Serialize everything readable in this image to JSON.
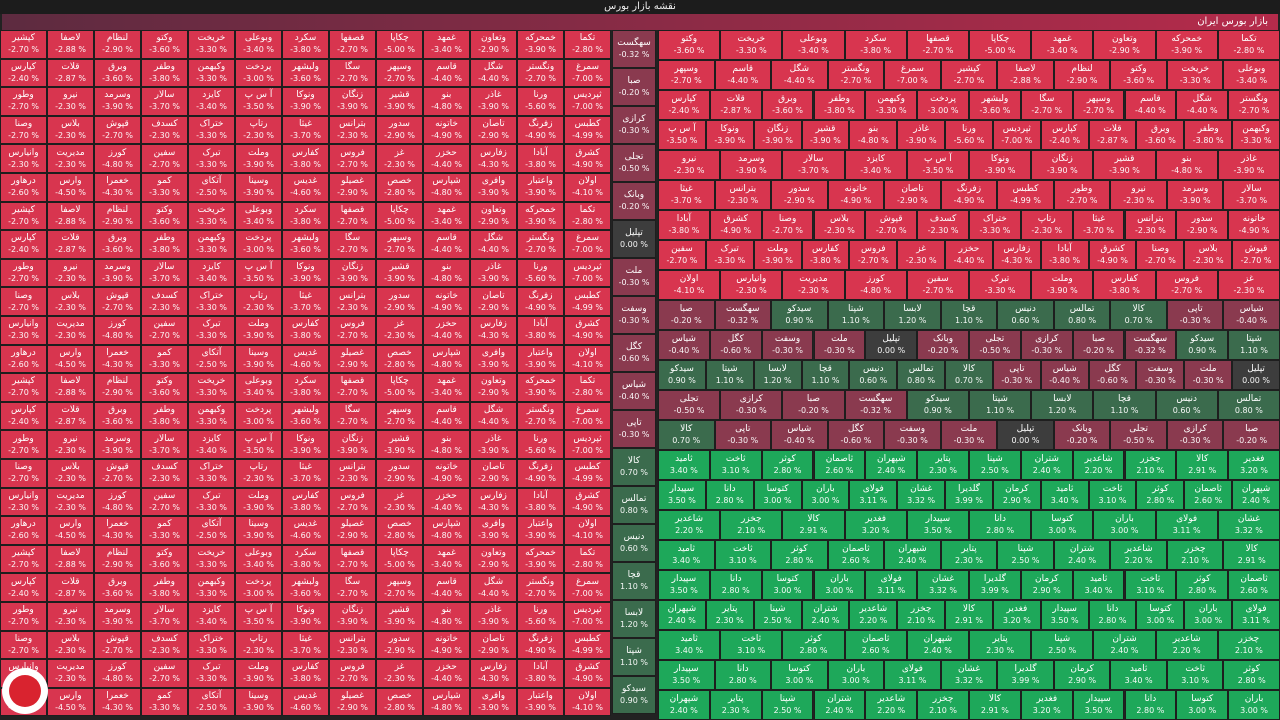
{
  "header": {
    "title": "نقشه بازار بورس",
    "subtitle": "بازار بورس ایران"
  },
  "colors": {
    "neg_strong": "#d8354f",
    "neg_mid": "#8a3a4f",
    "neutral": "#3d3d3d",
    "pos_mid": "#3b6b4d",
    "pos_strong": "#1ea85a"
  },
  "chart_data": {
    "type": "heatmap",
    "title": "نقشه بازار بورس",
    "subtitle": "بازار بورس ایران",
    "small_tiles": [
      {
        "name": "تکما",
        "change": -2.8
      },
      {
        "name": "خمحرکه",
        "change": -3.9
      },
      {
        "name": "وتعاون",
        "change": -2.9
      },
      {
        "name": "غمهد",
        "change": -3.4
      },
      {
        "name": "چکاپا",
        "change": -5
      },
      {
        "name": "قصفها",
        "change": -2.7
      },
      {
        "name": "سکرد",
        "change": -3.8
      },
      {
        "name": "وبوعلی",
        "change": -3.4
      },
      {
        "name": "خریخت",
        "change": -3.3
      },
      {
        "name": "وکتو",
        "change": -3.6
      },
      {
        "name": "لنظام",
        "change": -2.9
      },
      {
        "name": "لاصفا",
        "change": -2.88
      },
      {
        "name": "کپشیر",
        "change": -2.7
      },
      {
        "name": "سمرغ",
        "change": -7
      },
      {
        "name": "ونگستر",
        "change": -2.7
      },
      {
        "name": "شگل",
        "change": -4.4
      },
      {
        "name": "قاسم",
        "change": -4.4
      },
      {
        "name": "وسپهر",
        "change": -2.7
      },
      {
        "name": "سگا",
        "change": -2.7
      },
      {
        "name": "ولبشهر",
        "change": -3.6
      },
      {
        "name": "پردخت",
        "change": -3
      },
      {
        "name": "وکبهمن",
        "change": -3.3
      },
      {
        "name": "وطفر",
        "change": -3.8
      },
      {
        "name": "وبرق",
        "change": -3.6
      },
      {
        "name": "قلات",
        "change": -2.87
      },
      {
        "name": "کپارس",
        "change": -2.4
      },
      {
        "name": "ثپردیس",
        "change": -7
      },
      {
        "name": "ورنا",
        "change": -5.6
      },
      {
        "name": "غاذر",
        "change": -3.9
      },
      {
        "name": "بنو",
        "change": -4.8
      },
      {
        "name": "قشیر",
        "change": -3.9
      },
      {
        "name": "زنگان",
        "change": -3.9
      },
      {
        "name": "ونوکا",
        "change": -3.9
      },
      {
        "name": "آ س پ",
        "change": -3.5
      },
      {
        "name": "کایزد",
        "change": -3.4
      },
      {
        "name": "سالار",
        "change": -3.7
      },
      {
        "name": "وسرمد",
        "change": -3.9
      },
      {
        "name": "نیرو",
        "change": -2.3
      },
      {
        "name": "وطور",
        "change": -2.7
      },
      {
        "name": "کطبس",
        "change": -4.99
      },
      {
        "name": "زفرنگ",
        "change": -4.9
      },
      {
        "name": "تاصان",
        "change": -2.9
      },
      {
        "name": "خاتونه",
        "change": -4.9
      },
      {
        "name": "سدور",
        "change": -2.9
      },
      {
        "name": "بترانس",
        "change": -2.3
      },
      {
        "name": "غیثا",
        "change": -3.7
      },
      {
        "name": "رتاپ",
        "change": -2.3
      },
      {
        "name": "ختراک",
        "change": -3.3
      },
      {
        "name": "کسدف",
        "change": -2.3
      },
      {
        "name": "قپوش",
        "change": -2.7
      },
      {
        "name": "بلاس",
        "change": -2.3
      },
      {
        "name": "وصنا",
        "change": -2.7
      },
      {
        "name": "کشرق",
        "change": -4.9
      },
      {
        "name": "آبادا",
        "change": -3.8
      },
      {
        "name": "زفارس",
        "change": -4.3
      },
      {
        "name": "حخزر",
        "change": -4.4
      },
      {
        "name": "غز",
        "change": -2.3
      },
      {
        "name": "فروس",
        "change": -2.7
      },
      {
        "name": "کفارس",
        "change": -3.8
      },
      {
        "name": "وملت",
        "change": -3.9
      },
      {
        "name": "تبرک",
        "change": -3.3
      },
      {
        "name": "سفین",
        "change": -2.7
      },
      {
        "name": "کورز",
        "change": -4.8
      },
      {
        "name": "مدیریت",
        "change": -2.3
      },
      {
        "name": "وانیارس",
        "change": -2.3
      },
      {
        "name": "اولان",
        "change": -4.1
      },
      {
        "name": "واعتبار",
        "change": -3.9
      },
      {
        "name": "وافری",
        "change": -3.9
      },
      {
        "name": "شپارس",
        "change": -4.8
      },
      {
        "name": "خصص",
        "change": -2.8
      },
      {
        "name": "غصیلو",
        "change": -2.9
      },
      {
        "name": "غدیس",
        "change": -4.6
      },
      {
        "name": "وسینا",
        "change": -3.9
      },
      {
        "name": "آتکای",
        "change": -2.5
      },
      {
        "name": "کمو",
        "change": -3.3
      },
      {
        "name": "خعمرا",
        "change": -4.3
      },
      {
        "name": "وارس",
        "change": -4.5
      },
      {
        "name": "درهاور",
        "change": -2.6
      }
    ],
    "green_tiles": [
      {
        "name": "چخزر",
        "change": 2.1
      },
      {
        "name": "شاعدیر",
        "change": 2.2
      },
      {
        "name": "شتران",
        "change": 2.4
      },
      {
        "name": "شپنا",
        "change": 2.5
      },
      {
        "name": "پتایر",
        "change": 2.3
      },
      {
        "name": "شپهران",
        "change": 2.4
      },
      {
        "name": "ثاصمان",
        "change": 2.6
      },
      {
        "name": "کوثر",
        "change": 2.8
      },
      {
        "name": "ثاخت",
        "change": 3.1
      },
      {
        "name": "ثامید",
        "change": 3.4
      },
      {
        "name": "کرمان",
        "change": 2.9
      },
      {
        "name": "گلدیرا",
        "change": 3.99
      },
      {
        "name": "غشان",
        "change": 3.32
      },
      {
        "name": "فولای",
        "change": 3.11
      },
      {
        "name": "باران",
        "change": 3
      },
      {
        "name": "کتوسا",
        "change": 3
      },
      {
        "name": "دانا",
        "change": 2.8
      },
      {
        "name": "سپیدار",
        "change": 3.5
      },
      {
        "name": "فغدیر",
        "change": 3.2
      },
      {
        "name": "کالا",
        "change": 2.91
      }
    ],
    "neutral_tiles": [
      {
        "name": "سهگست",
        "change": -0.32
      },
      {
        "name": "صبا",
        "change": -0.2
      },
      {
        "name": "کرازی",
        "change": -0.3
      },
      {
        "name": "تجلی",
        "change": -0.5
      },
      {
        "name": "وبانک",
        "change": -0.2
      },
      {
        "name": "تپلیل",
        "change": 0
      },
      {
        "name": "ملت",
        "change": -0.3
      },
      {
        "name": "وسفت",
        "change": -0.3
      },
      {
        "name": "کگل",
        "change": -0.6
      },
      {
        "name": "شیاس",
        "change": -0.4
      },
      {
        "name": "تاپی",
        "change": -0.3
      },
      {
        "name": "کالا",
        "change": 0.7
      },
      {
        "name": "تمالس",
        "change": 0.8
      },
      {
        "name": "دنیس",
        "change": 0.6
      },
      {
        "name": "قچا",
        "change": 1.1
      },
      {
        "name": "لابسا",
        "change": 1.2
      },
      {
        "name": "شپتا",
        "change": 1.1
      },
      {
        "name": "سیدکو",
        "change": 0.9
      }
    ]
  }
}
